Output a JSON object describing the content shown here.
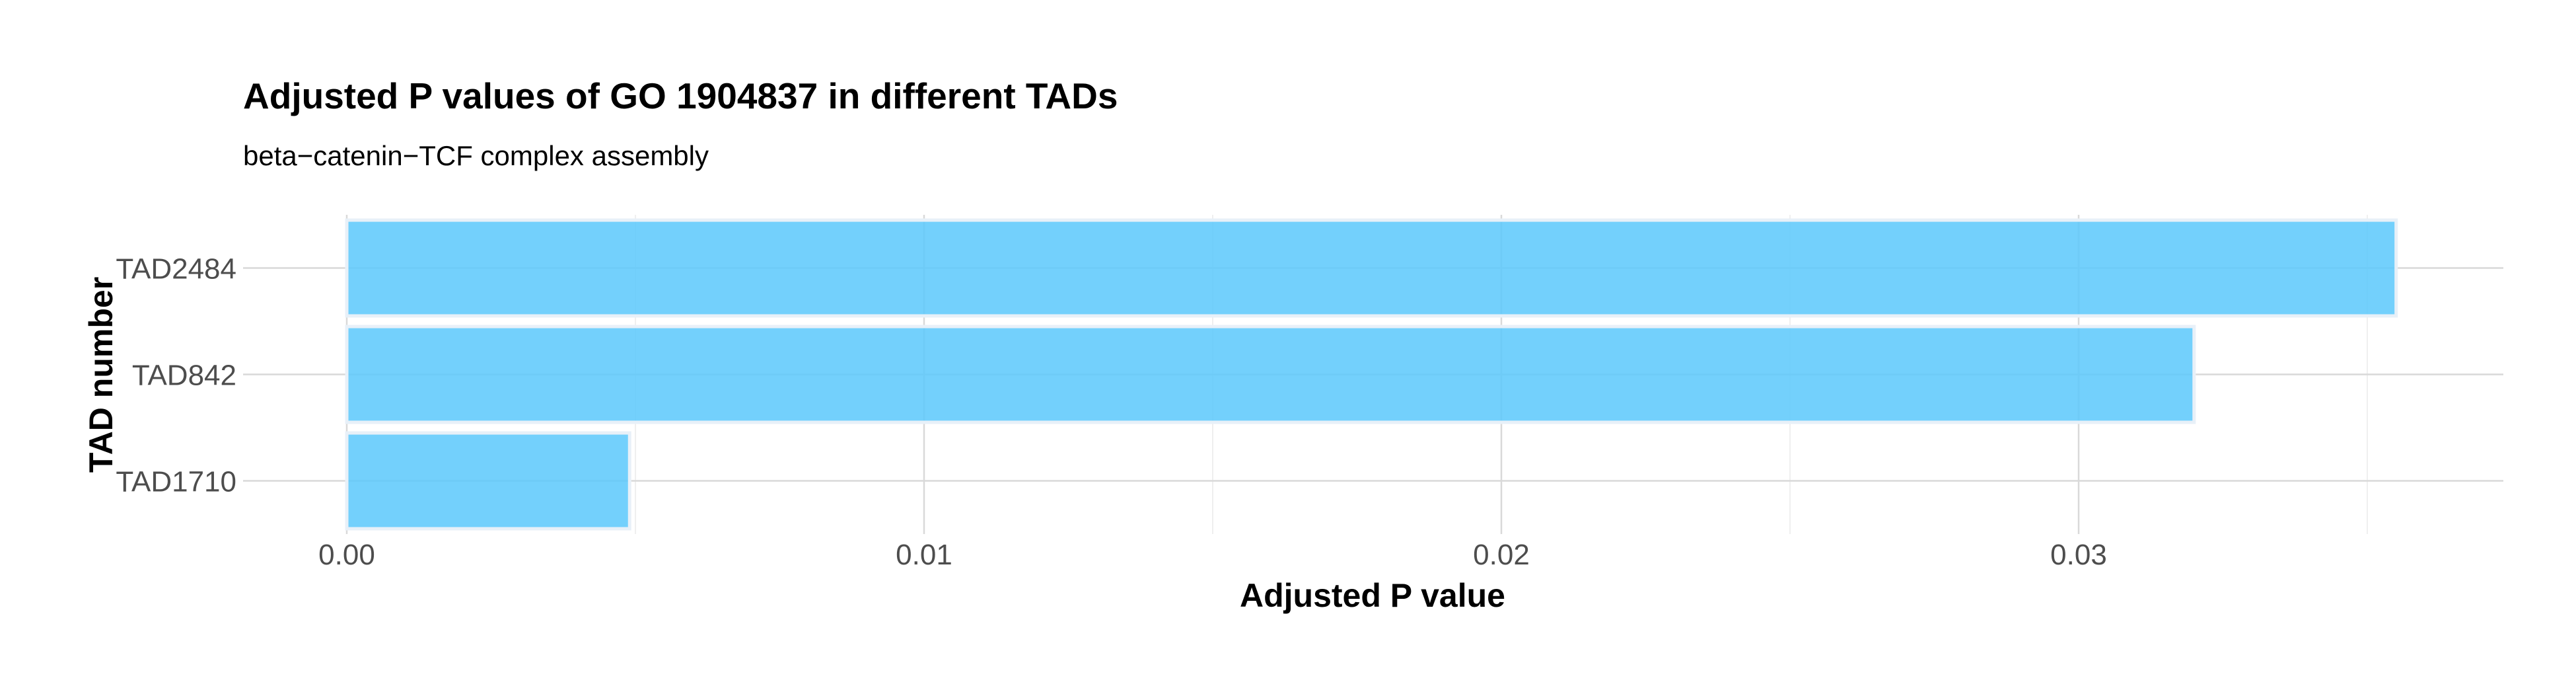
{
  "chart_data": {
    "type": "bar",
    "orientation": "horizontal",
    "title": "Adjusted P values of GO 1904837 in different TADs",
    "subtitle": "beta−catenin−TCF complex assembly",
    "xlabel": "Adjusted P value",
    "ylabel": "TAD number",
    "categories": [
      "TAD2484",
      "TAD842",
      "TAD1710"
    ],
    "values": [
      0.0355,
      0.032,
      0.0049
    ],
    "xlim": [
      0,
      0.0373
    ],
    "x_ticks": [
      0.0,
      0.01,
      0.02,
      0.03
    ],
    "x_tick_labels": [
      "0.00",
      "0.01",
      "0.02",
      "0.03"
    ],
    "grid": true,
    "legend": "none",
    "bar_color": "#5bc8fb",
    "bar_outline_color": "#e8f0f8"
  }
}
